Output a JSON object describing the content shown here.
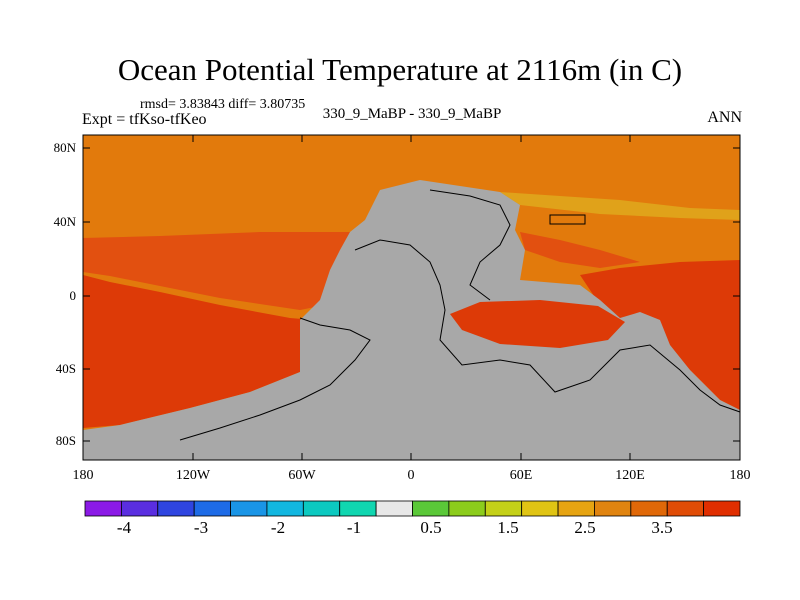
{
  "title": "Ocean Potential Temperature at 2116m (in C)",
  "stats": "rmsd= 3.83843  diff= 3.80735",
  "expt": "Expt = tfKso-tfKeo",
  "case": "330_9_MaBP - 330_9_MaBP",
  "season": "ANN",
  "y_ticks": [
    "80N",
    "40N",
    "0",
    "40S",
    "80S"
  ],
  "x_ticks": [
    "180",
    "120W",
    "60W",
    "0",
    "60E",
    "120E",
    "180"
  ],
  "colorbar": {
    "colors": [
      "#8b1ae6",
      "#5a2ee0",
      "#2f45e0",
      "#1e6be6",
      "#1a95e6",
      "#12b7e0",
      "#0cc9c0",
      "#10d6b0",
      "#e8e8e8",
      "#5ac838",
      "#8ccc1c",
      "#c4d018",
      "#e0c414",
      "#e6a412",
      "#e08410",
      "#e06808",
      "#e04c06",
      "#e02e00"
    ],
    "labels": [
      "-4",
      "-3",
      "-2",
      "-1",
      "0.5",
      "1.5",
      "2.5",
      "3.5"
    ]
  },
  "colors": {
    "land": "#a8a8a8",
    "warm_orange": "#e27a0c",
    "deep_red": "#dd3a07",
    "mid_red": "#e25010",
    "yellow": "#e0a21a",
    "frame": "#000000"
  }
}
